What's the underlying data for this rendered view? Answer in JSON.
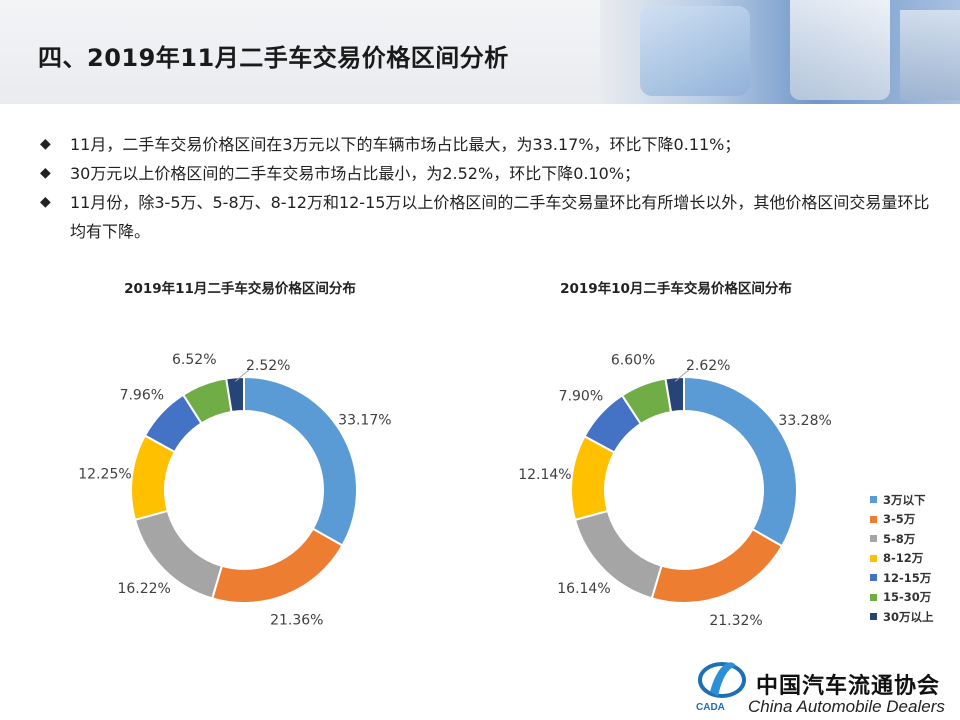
{
  "page_title": "四、2019年11月二手车交易价格区间分析",
  "bullets": [
    "11月，二手车交易价格区间在3万元以下的车辆市场占比最大，为33.17%，环比下降0.11%；",
    "30万元以上价格区间的二手车交易市场占比最小，为2.52%，环比下降0.10%；",
    "11月份，除3-5万、5-8万、8-12万和12-15万以上价格区间的二手车交易量环比有所增长以外，其他价格区间交易量环比均有下降。"
  ],
  "bullet_marker": "◆",
  "legend": {
    "items": [
      "3万以下",
      "3-5万",
      "5-8万",
      "8-12万",
      "12-15万",
      "15-30万",
      "30万以上"
    ],
    "colors": [
      "#5b9bd5",
      "#ed7d31",
      "#a5a5a5",
      "#ffc000",
      "#4472c4",
      "#70ad47",
      "#264478"
    ]
  },
  "chart_data": [
    {
      "type": "pie",
      "variant": "donut",
      "title": "2019年11月二手车交易价格区间分布",
      "categories": [
        "3万以下",
        "3-5万",
        "5-8万",
        "8-12万",
        "12-15万",
        "15-30万",
        "30万以上"
      ],
      "values": [
        33.17,
        21.36,
        16.22,
        12.25,
        7.96,
        6.52,
        2.52
      ],
      "labels": [
        "33.17%",
        "21.36%",
        "16.22%",
        "12.25%",
        "7.96%",
        "6.52%",
        "2.52%"
      ],
      "colors": [
        "#5b9bd5",
        "#ed7d31",
        "#a5a5a5",
        "#ffc000",
        "#4472c4",
        "#70ad47",
        "#264478"
      ]
    },
    {
      "type": "pie",
      "variant": "donut",
      "title": "2019年10月二手车交易价格区间分布",
      "categories": [
        "3万以下",
        "3-5万",
        "5-8万",
        "8-12万",
        "12-15万",
        "15-30万",
        "30万以上"
      ],
      "values": [
        33.28,
        21.32,
        16.14,
        12.14,
        7.9,
        6.6,
        2.62
      ],
      "labels": [
        "33.28%",
        "21.32%",
        "16.14%",
        "12.14%",
        "7.90%",
        "6.60%",
        "2.62%"
      ],
      "colors": [
        "#5b9bd5",
        "#ed7d31",
        "#a5a5a5",
        "#ffc000",
        "#4472c4",
        "#70ad47",
        "#264478"
      ]
    }
  ],
  "footer": {
    "org_cn": "中国汽车流通协会",
    "org_en": "China Automobile Dealers",
    "logo_text": "CADA"
  }
}
